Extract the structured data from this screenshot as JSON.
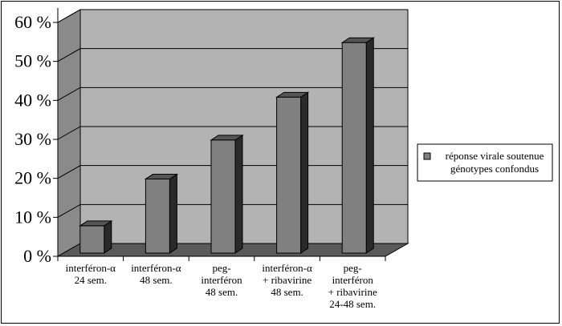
{
  "chart_data": {
    "type": "bar",
    "style": "3d",
    "categories": [
      [
        "interféron-α",
        "24 sem."
      ],
      [
        "interféron-α",
        "48 sem."
      ],
      [
        "peg-",
        "interféron",
        "48 sem."
      ],
      [
        "interféron-α",
        "+ ribavirine",
        "48 sem."
      ],
      [
        "peg-",
        "interféron",
        "+ ribavirine",
        "24-48 sem."
      ]
    ],
    "series": [
      {
        "name": [
          "réponse virale soutenue",
          "génotypes confondus"
        ],
        "values": [
          7,
          19,
          29,
          40,
          54
        ]
      }
    ],
    "ytick_labels": [
      "0 %",
      "10 %",
      "20 %",
      "30 %",
      "40 %",
      "50 %",
      "60 %"
    ],
    "ylim": [
      0,
      60
    ],
    "grid": true,
    "legend_position": "right",
    "colors": {
      "bar_front": "#808080",
      "bar_side": "#2a2a2a",
      "bar_top": "#555555",
      "plot_back": "#b3b3b3",
      "plot_side": "#8a8a8a",
      "floor": "#5a5a5a"
    }
  }
}
